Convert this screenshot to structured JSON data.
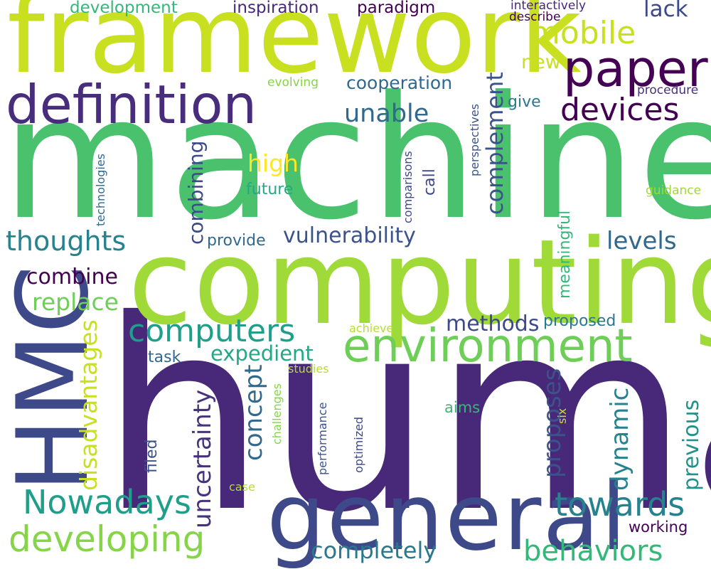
{
  "palette": {
    "dark_purple": "#440154",
    "indigo": "#482878",
    "blue": "#3e4989",
    "teal_blue": "#31688e",
    "teal": "#26828e",
    "sea_green": "#1f9e89",
    "green": "#35b779",
    "light_green": "#6ece58",
    "lime": "#b5de2b",
    "yellow": "#fde725"
  },
  "words": [
    {
      "text": "human",
      "color": "#482878"
    },
    {
      "text": "machine",
      "color": "#4ac16d"
    },
    {
      "text": "computing",
      "color": "#a0da39"
    },
    {
      "text": "framework",
      "color": "#c8e020"
    },
    {
      "text": "general",
      "color": "#3e4989"
    },
    {
      "text": "HMC",
      "color": "#3e4989"
    },
    {
      "text": "definition",
      "color": "#472d7b"
    },
    {
      "text": "environment",
      "color": "#6ece58"
    },
    {
      "text": "paper",
      "color": "#440154"
    },
    {
      "text": "devices",
      "color": "#440154"
    },
    {
      "text": "computers",
      "color": "#1f9e89"
    },
    {
      "text": "mobile",
      "color": "#c8e020"
    },
    {
      "text": "developing",
      "color": "#86d549"
    },
    {
      "text": "Nowadays",
      "color": "#1f9e89"
    },
    {
      "text": "towards",
      "color": "#26828e"
    },
    {
      "text": "behaviors",
      "color": "#35b779"
    },
    {
      "text": "thoughts",
      "color": "#26828e"
    },
    {
      "text": "unable",
      "color": "#31688e"
    },
    {
      "text": "completely",
      "color": "#2a788e"
    },
    {
      "text": "vulnerability",
      "color": "#3b528b"
    },
    {
      "text": "uncertainty",
      "color": "#46327e"
    },
    {
      "text": "replace",
      "color": "#6ece58"
    },
    {
      "text": "combine",
      "color": "#440154"
    },
    {
      "text": "expedient",
      "color": "#22a884"
    },
    {
      "text": "methods",
      "color": "#3e4989"
    },
    {
      "text": "levels",
      "color": "#31688e"
    },
    {
      "text": "high",
      "color": "#fde725"
    },
    {
      "text": "complement",
      "color": "#3b528b"
    },
    {
      "text": "combining",
      "color": "#3e4989"
    },
    {
      "text": "concept",
      "color": "#31688e"
    },
    {
      "text": "proposes",
      "color": "#3b528b"
    },
    {
      "text": "dynamic",
      "color": "#26828e"
    },
    {
      "text": "previous",
      "color": "#21918c"
    },
    {
      "text": "disadvantages",
      "color": "#c8e020"
    },
    {
      "text": "lack",
      "color": "#3e4989"
    },
    {
      "text": "cooperation",
      "color": "#31688e"
    },
    {
      "text": "new",
      "color": "#c8e020"
    },
    {
      "text": "inspiration",
      "color": "#482878"
    },
    {
      "text": "paradigm",
      "color": "#440154"
    },
    {
      "text": "development",
      "color": "#35b779"
    },
    {
      "text": "future",
      "color": "#22a884"
    },
    {
      "text": "provide",
      "color": "#31688e"
    },
    {
      "text": "call",
      "color": "#3e4989"
    },
    {
      "text": "meaningful",
      "color": "#35b779"
    },
    {
      "text": "give",
      "color": "#2a788e"
    },
    {
      "text": "proposed",
      "color": "#2a788e"
    },
    {
      "text": "task",
      "color": "#31688e"
    },
    {
      "text": "filed",
      "color": "#3b528b"
    },
    {
      "text": "aims",
      "color": "#35b779"
    },
    {
      "text": "working",
      "color": "#440154"
    },
    {
      "text": "interactively",
      "color": "#482878"
    },
    {
      "text": "describe",
      "color": "#440154"
    },
    {
      "text": "procedure",
      "color": "#46327e"
    },
    {
      "text": "guidance",
      "color": "#a0da39"
    },
    {
      "text": "evolving",
      "color": "#86d549"
    },
    {
      "text": "perspectives",
      "color": "#3b528b"
    },
    {
      "text": "technologies",
      "color": "#31688e"
    },
    {
      "text": "comparisons",
      "color": "#3e4989"
    },
    {
      "text": "achieve",
      "color": "#b5de2b"
    },
    {
      "text": "studies",
      "color": "#b5de2b"
    },
    {
      "text": "challenges",
      "color": "#86d549"
    },
    {
      "text": "performance",
      "color": "#3b528b"
    },
    {
      "text": "optimized",
      "color": "#3e4989"
    },
    {
      "text": "six",
      "color": "#c8e020"
    },
    {
      "text": "case",
      "color": "#b5de2b"
    }
  ]
}
